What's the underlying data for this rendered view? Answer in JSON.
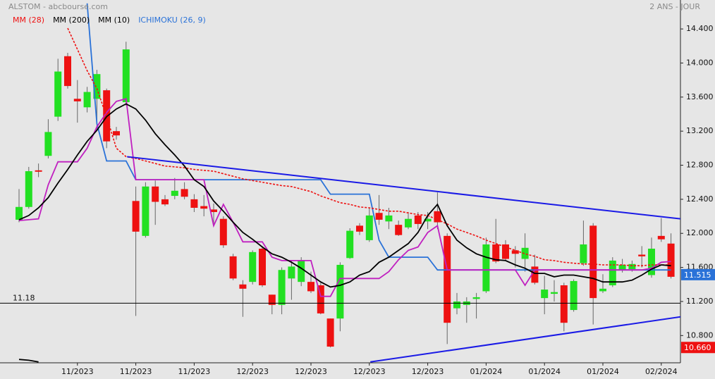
{
  "chart_data": {
    "type": "candlestick",
    "title": "ALSTOM - abcbourse.com",
    "subtitle": "2 ANS - JOUR",
    "categories": [
      null,
      null,
      null,
      null,
      null,
      null,
      "11/2023",
      null,
      null,
      null,
      null,
      null,
      "11/2023",
      null,
      null,
      null,
      null,
      null,
      "11/2023",
      null,
      null,
      null,
      null,
      null,
      "12/2023",
      null,
      null,
      null,
      null,
      null,
      "12/2023",
      null,
      null,
      null,
      null,
      null,
      "12/2023",
      null,
      null,
      null,
      null,
      null,
      "12/2023",
      null,
      null,
      null,
      null,
      null,
      "01/2024",
      null,
      null,
      null,
      null,
      null,
      "01/2024",
      null,
      null,
      null,
      null,
      null,
      "01/2024",
      null,
      null,
      null,
      null,
      null,
      "02/2024",
      null
    ],
    "open": [
      12.16,
      12.31,
      12.74,
      12.91,
      13.37,
      14.08,
      13.58,
      13.48,
      13.58,
      13.68,
      13.2,
      13.54,
      12.38,
      11.97,
      12.55,
      12.4,
      12.44,
      12.52,
      12.4,
      12.32,
      12.28,
      12.17,
      11.73,
      11.4,
      11.43,
      11.82,
      11.28,
      11.16,
      11.47,
      11.43,
      11.43,
      11.39,
      11.0,
      11.0,
      11.71,
      12.09,
      11.92,
      12.24,
      12.14,
      12.1,
      12.07,
      12.21,
      12.14,
      12.26,
      11.97,
      11.12,
      11.16,
      11.23,
      11.32,
      11.87,
      11.87,
      11.8,
      11.7,
      11.61,
      11.24,
      11.29,
      11.39,
      11.1,
      11.65,
      12.09,
      11.32,
      11.39,
      11.57,
      11.58,
      11.75,
      11.51,
      11.97,
      11.88
    ],
    "high": [
      12.52,
      12.78,
      12.82,
      13.34,
      14.05,
      14.12,
      13.8,
      13.72,
      13.92,
      13.7,
      13.25,
      14.25,
      12.55,
      12.6,
      12.62,
      12.45,
      12.65,
      12.6,
      12.46,
      12.45,
      12.35,
      12.2,
      11.76,
      11.45,
      11.8,
      11.85,
      11.28,
      11.6,
      11.68,
      11.72,
      11.55,
      11.42,
      11.0,
      11.66,
      12.06,
      12.12,
      12.3,
      12.45,
      12.3,
      12.15,
      12.25,
      12.25,
      12.25,
      12.48,
      12.0,
      11.3,
      11.25,
      11.3,
      11.95,
      12.17,
      11.92,
      11.85,
      12.0,
      11.75,
      11.5,
      11.45,
      11.42,
      11.46,
      12.15,
      12.12,
      11.52,
      11.72,
      11.7,
      11.68,
      11.85,
      11.95,
      12.18,
      12.0
    ],
    "low": [
      12.13,
      12.29,
      12.66,
      12.88,
      13.32,
      13.7,
      13.3,
      13.42,
      13.2,
      13.0,
      13.1,
      13.5,
      11.03,
      11.95,
      12.1,
      12.32,
      12.4,
      12.4,
      12.25,
      12.2,
      12.1,
      11.83,
      11.45,
      11.02,
      11.4,
      11.37,
      11.05,
      11.05,
      11.22,
      11.38,
      11.3,
      11.05,
      10.66,
      10.85,
      11.7,
      11.98,
      11.9,
      12.1,
      12.05,
      11.97,
      12.05,
      12.05,
      12.05,
      12.05,
      10.7,
      11.05,
      10.95,
      11.0,
      11.3,
      11.65,
      11.68,
      11.6,
      11.55,
      11.4,
      11.05,
      11.2,
      10.85,
      11.08,
      11.62,
      10.93,
      11.3,
      11.37,
      11.54,
      11.55,
      11.6,
      11.48,
      11.9,
      11.47
    ],
    "close": [
      12.31,
      12.73,
      12.73,
      13.19,
      13.9,
      13.73,
      13.55,
      13.66,
      13.87,
      13.08,
      13.15,
      14.16,
      12.02,
      12.55,
      12.37,
      12.34,
      12.5,
      12.43,
      12.3,
      12.29,
      12.25,
      11.86,
      11.47,
      11.35,
      11.78,
      11.39,
      11.16,
      11.57,
      11.61,
      11.68,
      11.32,
      11.06,
      10.67,
      11.63,
      12.03,
      12.02,
      12.21,
      12.16,
      12.21,
      11.98,
      12.17,
      12.11,
      12.17,
      12.13,
      10.95,
      11.2,
      11.2,
      11.25,
      11.87,
      11.67,
      11.7,
      11.76,
      11.83,
      11.42,
      11.34,
      11.31,
      10.95,
      11.44,
      11.87,
      11.24,
      11.35,
      11.68,
      11.63,
      11.64,
      11.73,
      11.82,
      11.93,
      11.49
    ],
    "up_color": "#22e022",
    "down_color": "#ee1111",
    "series": [
      {
        "name": "MM (28)",
        "color": "#ee1111",
        "dashed": true,
        "values": [
          null,
          null,
          null,
          null,
          null,
          14.41,
          14.16,
          13.91,
          13.7,
          13.37,
          13.0,
          12.9,
          12.88,
          12.85,
          12.82,
          12.79,
          12.78,
          12.77,
          12.75,
          12.74,
          12.73,
          12.7,
          12.67,
          12.64,
          12.62,
          12.6,
          12.58,
          12.56,
          12.55,
          12.52,
          12.49,
          12.44,
          12.4,
          12.36,
          12.34,
          12.31,
          12.3,
          12.28,
          12.26,
          12.26,
          12.24,
          12.22,
          12.21,
          12.16,
          12.11,
          12.05,
          12.01,
          11.97,
          11.92,
          11.88,
          11.84,
          11.8,
          11.76,
          11.73,
          11.69,
          11.68,
          11.66,
          11.65,
          11.64,
          11.64,
          11.63,
          11.63,
          11.63,
          11.62,
          11.62,
          11.63,
          11.63,
          11.63
        ]
      },
      {
        "name": "MM (200)",
        "color": "#000000",
        "dashed": false,
        "values": [
          10.52,
          10.51,
          10.49,
          null,
          null,
          null,
          null,
          null,
          null,
          null,
          null,
          null,
          null,
          null,
          null,
          null,
          null,
          null,
          null,
          null,
          null,
          null,
          null,
          null,
          null,
          null,
          null,
          null,
          null,
          null,
          null,
          null,
          null,
          null,
          null,
          null,
          null,
          null,
          null,
          null,
          null,
          null,
          null,
          null,
          null,
          null,
          null,
          null,
          null,
          null,
          null,
          null,
          null,
          null,
          null,
          null,
          null,
          null,
          null,
          null,
          null,
          null,
          null,
          null,
          null,
          null,
          null,
          null
        ]
      },
      {
        "name": "MM (10)",
        "color": "#000000",
        "dashed": false,
        "values": [
          12.16,
          12.21,
          12.3,
          12.42,
          12.59,
          12.75,
          12.92,
          13.08,
          13.21,
          13.37,
          13.46,
          13.52,
          13.46,
          13.33,
          13.17,
          13.04,
          12.92,
          12.79,
          12.63,
          12.55,
          12.38,
          12.26,
          12.13,
          12.01,
          11.93,
          11.84,
          11.76,
          11.72,
          11.66,
          11.59,
          11.51,
          11.43,
          11.37,
          11.39,
          11.43,
          11.51,
          11.55,
          11.66,
          11.72,
          11.8,
          11.88,
          12.01,
          12.21,
          12.34,
          12.09,
          11.92,
          11.83,
          11.76,
          11.72,
          11.69,
          11.68,
          11.63,
          11.59,
          11.53,
          11.53,
          11.49,
          11.51,
          11.51,
          11.49,
          11.47,
          11.43,
          11.43,
          11.43,
          11.45,
          11.51,
          11.58,
          11.63,
          11.62
        ]
      }
    ],
    "ichimoku": {
      "name": "ICHIMOKU (26, 9)",
      "color": "#2a72d8",
      "kijun": [
        null,
        null,
        null,
        null,
        null,
        null,
        null,
        14.7,
        13.29,
        12.85,
        12.85,
        12.85,
        12.63,
        12.63,
        12.63,
        12.63,
        12.63,
        12.63,
        12.63,
        12.63,
        12.63,
        12.63,
        12.63,
        12.63,
        12.63,
        12.63,
        12.63,
        12.63,
        12.63,
        12.63,
        12.63,
        12.63,
        12.46,
        12.46,
        12.46,
        12.46,
        12.46,
        11.92,
        11.72,
        11.72,
        11.72,
        11.72,
        11.72,
        11.57,
        11.57,
        11.57,
        11.57,
        11.57,
        11.57,
        11.57,
        11.57,
        11.57,
        11.57,
        11.57,
        11.57,
        11.57,
        11.57,
        11.57,
        11.57,
        11.57,
        11.57,
        11.57,
        11.57,
        11.57,
        11.57,
        11.57,
        11.57,
        11.57
      ],
      "tenkan_color": "#c020c0",
      "tenkan": [
        12.15,
        12.16,
        12.17,
        12.57,
        12.84,
        12.84,
        12.84,
        13.0,
        13.25,
        13.42,
        13.55,
        13.58,
        12.63,
        12.63,
        12.63,
        12.63,
        12.63,
        12.63,
        12.63,
        12.63,
        12.09,
        12.34,
        12.13,
        11.9,
        11.9,
        11.9,
        11.72,
        11.68,
        11.68,
        11.68,
        11.68,
        11.26,
        11.26,
        11.47,
        11.47,
        11.47,
        11.47,
        11.47,
        11.55,
        11.69,
        11.8,
        11.84,
        12.01,
        12.09,
        11.57,
        11.57,
        11.57,
        11.57,
        11.57,
        11.57,
        11.57,
        11.57,
        11.39,
        11.57,
        11.57,
        11.57,
        11.57,
        11.57,
        11.57,
        11.57,
        11.57,
        11.57,
        11.57,
        11.57,
        11.57,
        11.59,
        11.66,
        11.67
      ]
    },
    "trendlines": [
      {
        "color": "#1a1ae6",
        "x": [
          11.1,
          68.0
        ],
        "y": [
          12.9,
          12.17
        ]
      },
      {
        "color": "#1a1ae6",
        "x": [
          36.1,
          68.0
        ],
        "y": [
          10.49,
          11.02
        ]
      }
    ],
    "level": 11.18,
    "price_tags": [
      {
        "value": 11.515,
        "color": "#2a72d8"
      },
      {
        "value": 10.66,
        "label": "10.660",
        "color": "#ee1111"
      }
    ],
    "ylim": [
      10.48,
      14.74
    ],
    "yticks": [
      {
        "value": 10.8,
        "label": "10.800"
      },
      {
        "value": 11.2,
        "label": "11.200"
      },
      {
        "value": 11.6,
        "label": "11.600"
      },
      {
        "value": 12.0,
        "label": "12.000"
      },
      {
        "value": 12.4,
        "label": "12.400"
      },
      {
        "value": 12.8,
        "label": "12.800"
      },
      {
        "value": 13.2,
        "label": "13.200"
      },
      {
        "value": 13.6,
        "label": "13.600"
      },
      {
        "value": 14.0,
        "label": "14.000"
      },
      {
        "value": 14.4,
        "label": "14.400"
      }
    ]
  }
}
